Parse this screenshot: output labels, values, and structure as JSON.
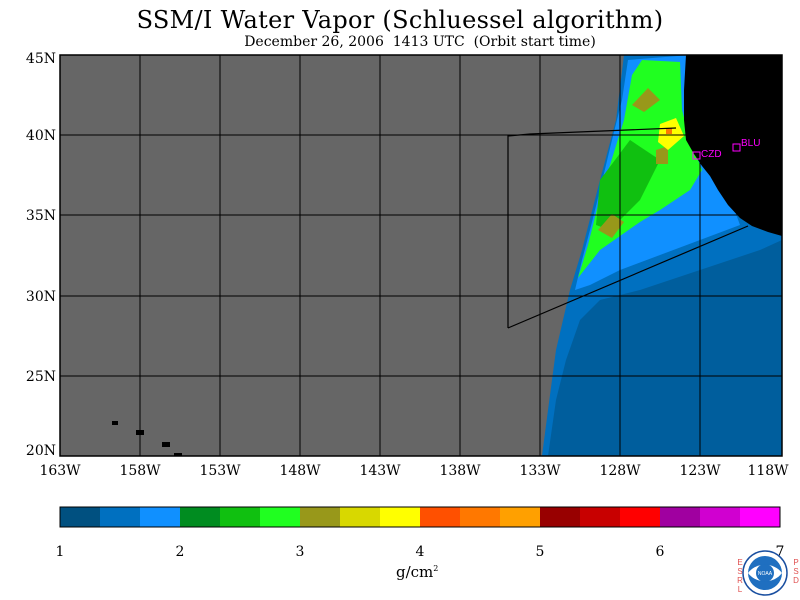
{
  "title": "SSM/I Water Vapor (Schluessel algorithm)",
  "subtitle": "December 26, 2006  1413 UTC  (Orbit start time)",
  "lat_labels": [
    "45N",
    "40N",
    "35N",
    "30N",
    "25N",
    "20N"
  ],
  "lon_labels": [
    "163W",
    "158W",
    "153W",
    "148W",
    "143W",
    "138W",
    "133W",
    "128W",
    "123W",
    "118W"
  ],
  "colorbar": {
    "ticks": [
      "1",
      "2",
      "3",
      "4",
      "5",
      "6",
      "7"
    ],
    "units_base": "g/cm",
    "units_exp": "2",
    "colors": [
      "#005080",
      "#0070c0",
      "#1090ff",
      "#008c20",
      "#10c010",
      "#20ff20",
      "#98981a",
      "#d8d800",
      "#ffff00",
      "#ff5000",
      "#ff7800",
      "#ffa000",
      "#980000",
      "#c80000",
      "#ff0000",
      "#a000a0",
      "#d000d0",
      "#ff00ff"
    ]
  },
  "stations": [
    {
      "label": "CZD",
      "lon": -121.6,
      "lat": 38.6
    },
    {
      "label": "BLU",
      "lon": -120.0,
      "lat": 39.3
    }
  ],
  "map_colors": {
    "no_data": "#666666",
    "land": "#000000",
    "outline": "#000000",
    "station": "#ff00ff"
  },
  "logo": {
    "name": "NOAA",
    "left_side": [
      "E",
      "S",
      "R",
      "L"
    ],
    "right_side": [
      "P",
      "S",
      "D"
    ]
  }
}
